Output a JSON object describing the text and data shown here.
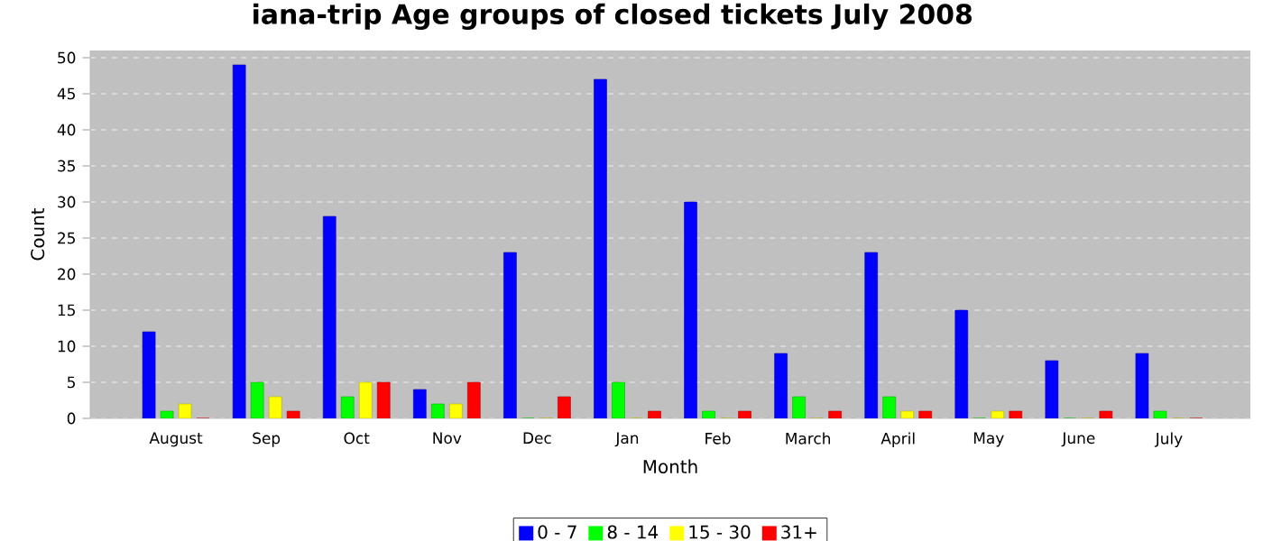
{
  "chart_data": {
    "type": "bar",
    "title": "iana-trip Age groups of closed tickets July 2008",
    "xlabel": "Month",
    "ylabel": "Count",
    "categories": [
      "August",
      "Sep",
      "Oct",
      "Nov",
      "Dec",
      "Jan",
      "Feb",
      "March",
      "April",
      "May",
      "June",
      "July"
    ],
    "series": [
      {
        "name": "0 - 7",
        "color": "#0000ff",
        "values": [
          12,
          49,
          28,
          4,
          23,
          47,
          30,
          9,
          23,
          15,
          8,
          9
        ]
      },
      {
        "name": "8 - 14",
        "color": "#00ff00",
        "values": [
          1,
          5,
          3,
          2,
          0,
          5,
          1,
          3,
          3,
          0,
          0,
          1
        ]
      },
      {
        "name": "15 - 30",
        "color": "#ffff00",
        "values": [
          2,
          3,
          5,
          2,
          0,
          0,
          0,
          0,
          1,
          1,
          0,
          0
        ]
      },
      {
        "name": "31+",
        "color": "#ff0000",
        "values": [
          0,
          1,
          5,
          5,
          3,
          1,
          1,
          1,
          1,
          1,
          1,
          0
        ]
      }
    ],
    "ylim": [
      0,
      51
    ],
    "yticks": [
      0,
      5,
      10,
      15,
      20,
      25,
      30,
      35,
      40,
      45,
      50
    ],
    "grid": "y",
    "legend": "bottom"
  }
}
